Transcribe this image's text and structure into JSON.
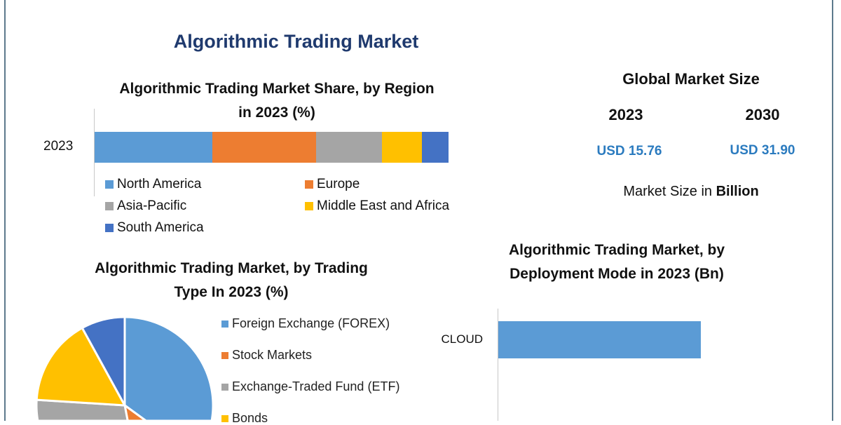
{
  "title": "Algorithmic Trading Market",
  "global_market": {
    "heading": "Global Market Size",
    "years": [
      "2023",
      "2030"
    ],
    "values": [
      "USD 15.76",
      "USD 31.90"
    ],
    "unit_prefix": "Market Size in ",
    "unit_bold": "Billion",
    "value_color": "#2b7bbf"
  },
  "chart_data": [
    {
      "type": "bar",
      "orientation": "horizontal-stacked",
      "title_line1": "Algorithmic Trading Market Share, by Region",
      "title_line2": "in 2023 (%)",
      "categories": [
        "2023"
      ],
      "series": [
        {
          "name": "North America",
          "values": [
            33.3
          ],
          "color": "#5b9bd5"
        },
        {
          "name": "Europe",
          "values": [
            29.3
          ],
          "color": "#ed7d31"
        },
        {
          "name": "Asia-Pacific",
          "values": [
            18.6
          ],
          "color": "#a5a5a5"
        },
        {
          "name": "Middle East and Africa",
          "values": [
            11.3
          ],
          "color": "#ffc000"
        },
        {
          "name": "South America",
          "values": [
            7.5
          ],
          "color": "#4472c4"
        }
      ],
      "legend": "bottom",
      "grid": false
    },
    {
      "type": "pie",
      "title_line1": "Algorithmic Trading Market, by Trading",
      "title_line2": "Type In 2023 (%)",
      "slices": [
        {
          "name": "Foreign Exchange (FOREX)",
          "value": 35,
          "color": "#5b9bd5"
        },
        {
          "name": "Stock Markets",
          "value": 12,
          "color": "#ed7d31"
        },
        {
          "name": "Exchange-Traded Fund (ETF)",
          "value": 29,
          "color": "#a5a5a5"
        },
        {
          "name": "Bonds",
          "value": 16,
          "color": "#ffc000"
        },
        {
          "name": "",
          "value": 8,
          "color": "#4472c4"
        }
      ],
      "legend": "right"
    },
    {
      "type": "bar",
      "orientation": "horizontal",
      "title_line1": "Algorithmic Trading Market, by",
      "title_line2": "Deployment Mode in 2023 (Bn)",
      "categories": [
        "CLOUD"
      ],
      "values": [
        60
      ],
      "xlim": [
        0,
        100
      ],
      "color": "#5b9bd5",
      "grid": false
    }
  ]
}
